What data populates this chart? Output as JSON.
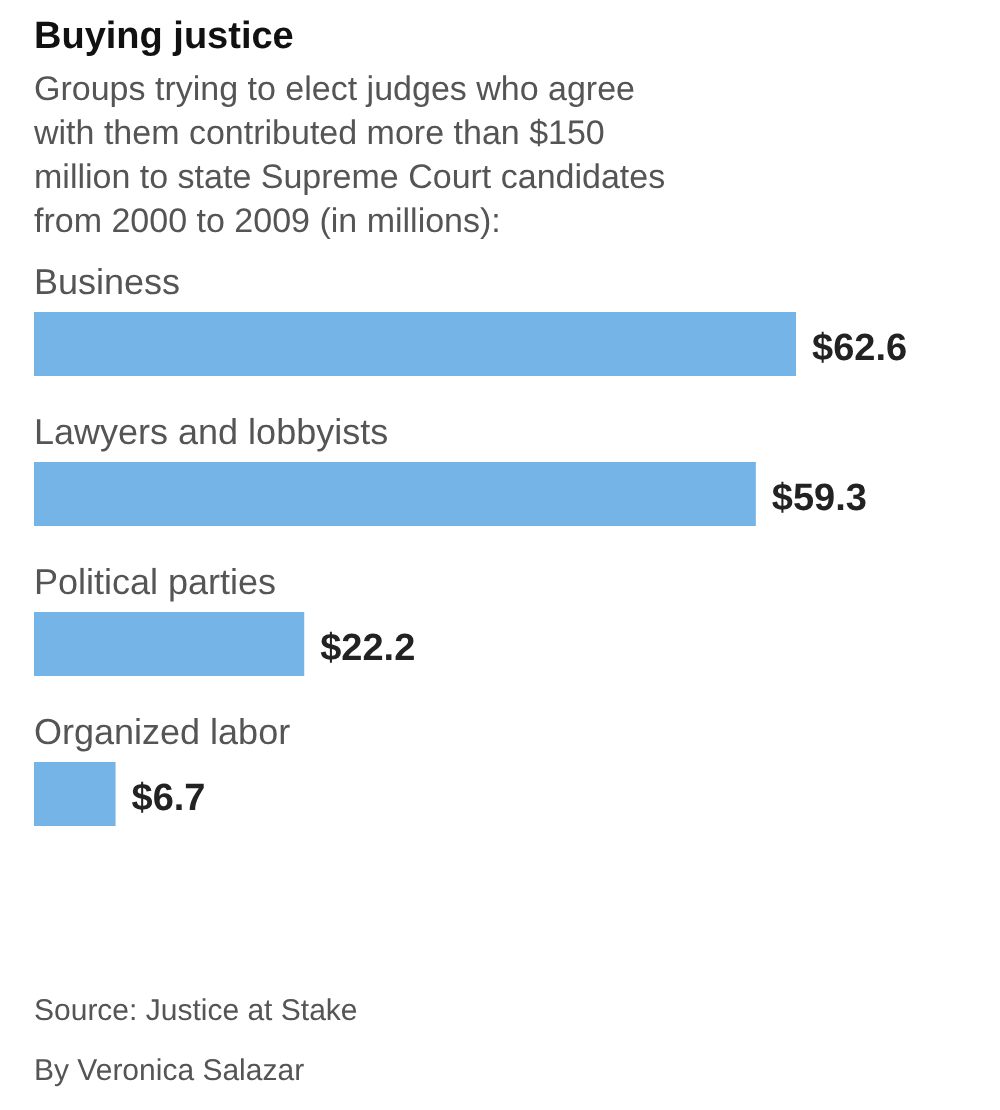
{
  "chart_data": {
    "type": "bar",
    "orientation": "horizontal",
    "title": "Buying justice",
    "subtitle": "Groups trying to elect judges who agree with them contributed more than $150 million to state Supreme Court candidates from 2000 to 2009 (in millions):",
    "categories": [
      "Business",
      "Lawyers and lobbyists",
      "Political parties",
      "Organized labor"
    ],
    "values": [
      62.6,
      59.3,
      22.2,
      6.7
    ],
    "value_labels": [
      "$62.6",
      "$59.3",
      "$22.2",
      "$6.7"
    ],
    "color": "#74b4e6",
    "annotations": [
      "Source: Justice at Stake",
      "By Veronica Salazar"
    ]
  }
}
